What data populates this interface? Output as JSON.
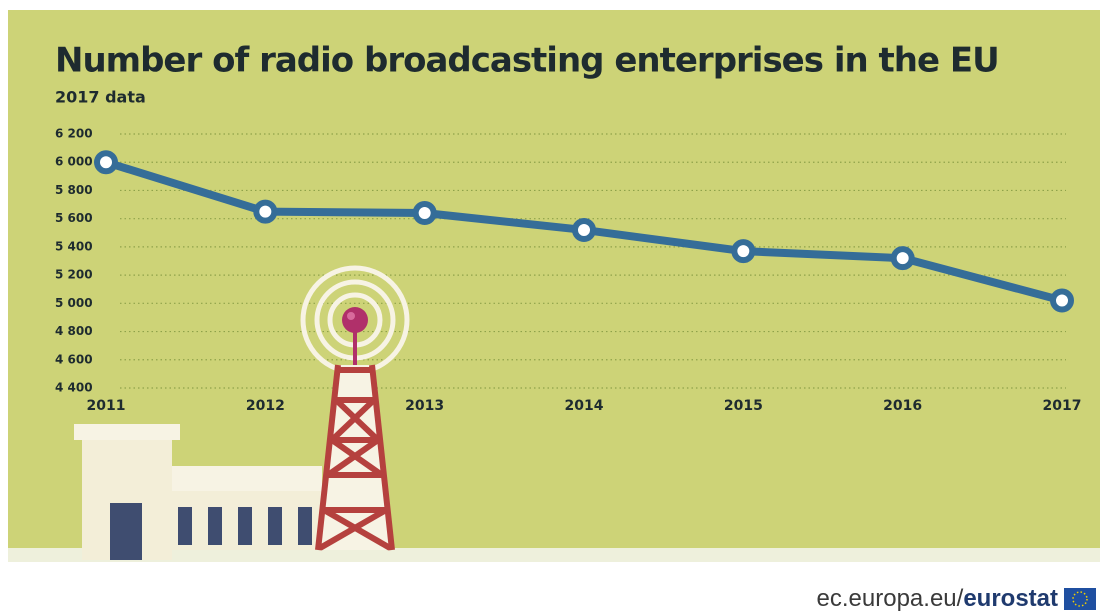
{
  "chart_data": {
    "type": "line",
    "title": "Number of radio broadcasting enterprises in the EU",
    "subtitle": "2017 data",
    "categories": [
      "2011",
      "2012",
      "2013",
      "2014",
      "2015",
      "2016",
      "2017"
    ],
    "values": [
      6000,
      5650,
      5640,
      5520,
      5370,
      5320,
      5020
    ],
    "color": "#356d98",
    "ylim": [
      4400,
      6200
    ],
    "yticks": [
      {
        "value": 4400,
        "label": "4 400"
      },
      {
        "value": 4600,
        "label": "4 600"
      },
      {
        "value": 4800,
        "label": "4 800"
      },
      {
        "value": 5000,
        "label": "5 000"
      },
      {
        "value": 5200,
        "label": "5 200"
      },
      {
        "value": 5400,
        "label": "5 400"
      },
      {
        "value": 5600,
        "label": "5 600"
      },
      {
        "value": 5800,
        "label": "5 800"
      },
      {
        "value": 6000,
        "label": "6 000"
      },
      {
        "value": 6200,
        "label": "6 200"
      }
    ],
    "grid": true
  },
  "footer": {
    "site": "ec.europa.eu/",
    "brand": "eurostat"
  }
}
